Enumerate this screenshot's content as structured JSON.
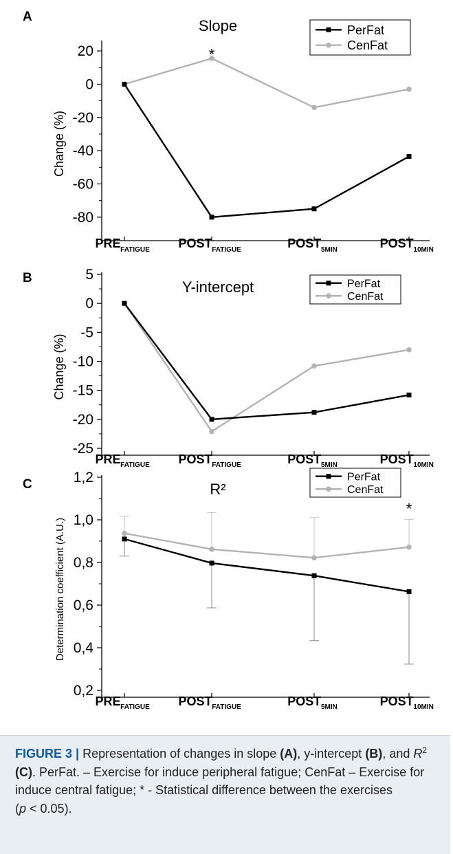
{
  "chart_data": [
    {
      "type": "line",
      "panel": "A",
      "title": "Slope",
      "ylabel": "Change (%)",
      "ylim": [
        -90,
        25
      ],
      "yticks": [
        "20",
        "0",
        "-20",
        "-40",
        "-60",
        "-80"
      ],
      "categories": [
        {
          "main": "PRE",
          "sub": "FATIGUE"
        },
        {
          "main": "POST",
          "sub": "FATIGUE"
        },
        {
          "main": "POST",
          "sub": "5MIN"
        },
        {
          "main": "POST",
          "sub": "10MIN"
        }
      ],
      "series": [
        {
          "name": "PerFat",
          "color": "#000000",
          "marker": "square",
          "values": [
            0,
            -80,
            -75,
            -43.5
          ]
        },
        {
          "name": "CenFat",
          "color": "#b3b3b3",
          "marker": "circle",
          "values": [
            0,
            15.5,
            -14,
            -3
          ]
        }
      ],
      "annotations": [
        {
          "text": "*",
          "category_index": 1,
          "y": 19
        }
      ],
      "legend": "top-right"
    },
    {
      "type": "line",
      "panel": "B",
      "title": "Y-intercept",
      "ylabel": "Change (%)",
      "ylim": [
        -25,
        5
      ],
      "yticks": [
        "5",
        "0",
        "-5",
        "-10",
        "-15",
        "-20",
        "-25"
      ],
      "categories": [
        {
          "main": "PRE",
          "sub": "FATIGUE"
        },
        {
          "main": "POST",
          "sub": "FATIGUE"
        },
        {
          "main": "POST",
          "sub": "5MIN"
        },
        {
          "main": "POST",
          "sub": "10MIN"
        }
      ],
      "series": [
        {
          "name": "PerFat",
          "color": "#000000",
          "marker": "square",
          "values": [
            0,
            -20,
            -18.8,
            -15.8
          ]
        },
        {
          "name": "CenFat",
          "color": "#b3b3b3",
          "marker": "circle",
          "values": [
            0,
            -22.1,
            -10.8,
            -8
          ]
        }
      ],
      "annotations": [],
      "legend": "top-right"
    },
    {
      "type": "line",
      "panel": "C",
      "title": "R²",
      "ylabel": "Determination coefficient (A.U.)",
      "ylim": [
        0.2,
        1.2
      ],
      "yticks": [
        "1,2",
        "1,0",
        "0,8",
        "0,6",
        "0,4",
        "0,2"
      ],
      "categories": [
        {
          "main": "PRE",
          "sub": "FATIGUE"
        },
        {
          "main": "POST",
          "sub": "FATIGUE"
        },
        {
          "main": "POST",
          "sub": "5MIN"
        },
        {
          "main": "POST",
          "sub": "10MIN"
        }
      ],
      "series": [
        {
          "name": "PerFat",
          "color": "#000000",
          "marker": "square",
          "values": [
            0.91,
            0.797,
            0.738,
            0.663
          ],
          "error_down": [
            0.08,
            0.21,
            0.305,
            0.34
          ]
        },
        {
          "name": "CenFat",
          "color": "#b3b3b3",
          "marker": "circle",
          "values": [
            0.937,
            0.862,
            0.822,
            0.872
          ],
          "error_up": [
            0.08,
            0.172,
            0.19,
            0.13
          ]
        }
      ],
      "annotations": [
        {
          "text": "*",
          "category_index": 3,
          "y": 1.06
        }
      ],
      "legend": "top-right"
    }
  ],
  "caption": {
    "label": "FIGURE 3 |",
    "t1": " Representation of changes in slope ",
    "b1": "(A)",
    "t2": ", y-intercept ",
    "b2": "(B)",
    "t3": ", and ",
    "r": "R",
    "sup": "2",
    "b3": "(C)",
    "t4": ". PerFat. – Exercise for induce peripheral fatigue; CenFat – Exercise for induce central fatigue; * - Statistical difference between the exercises",
    "t5": "(",
    "p": "p",
    "t6": " < 0.05)."
  }
}
